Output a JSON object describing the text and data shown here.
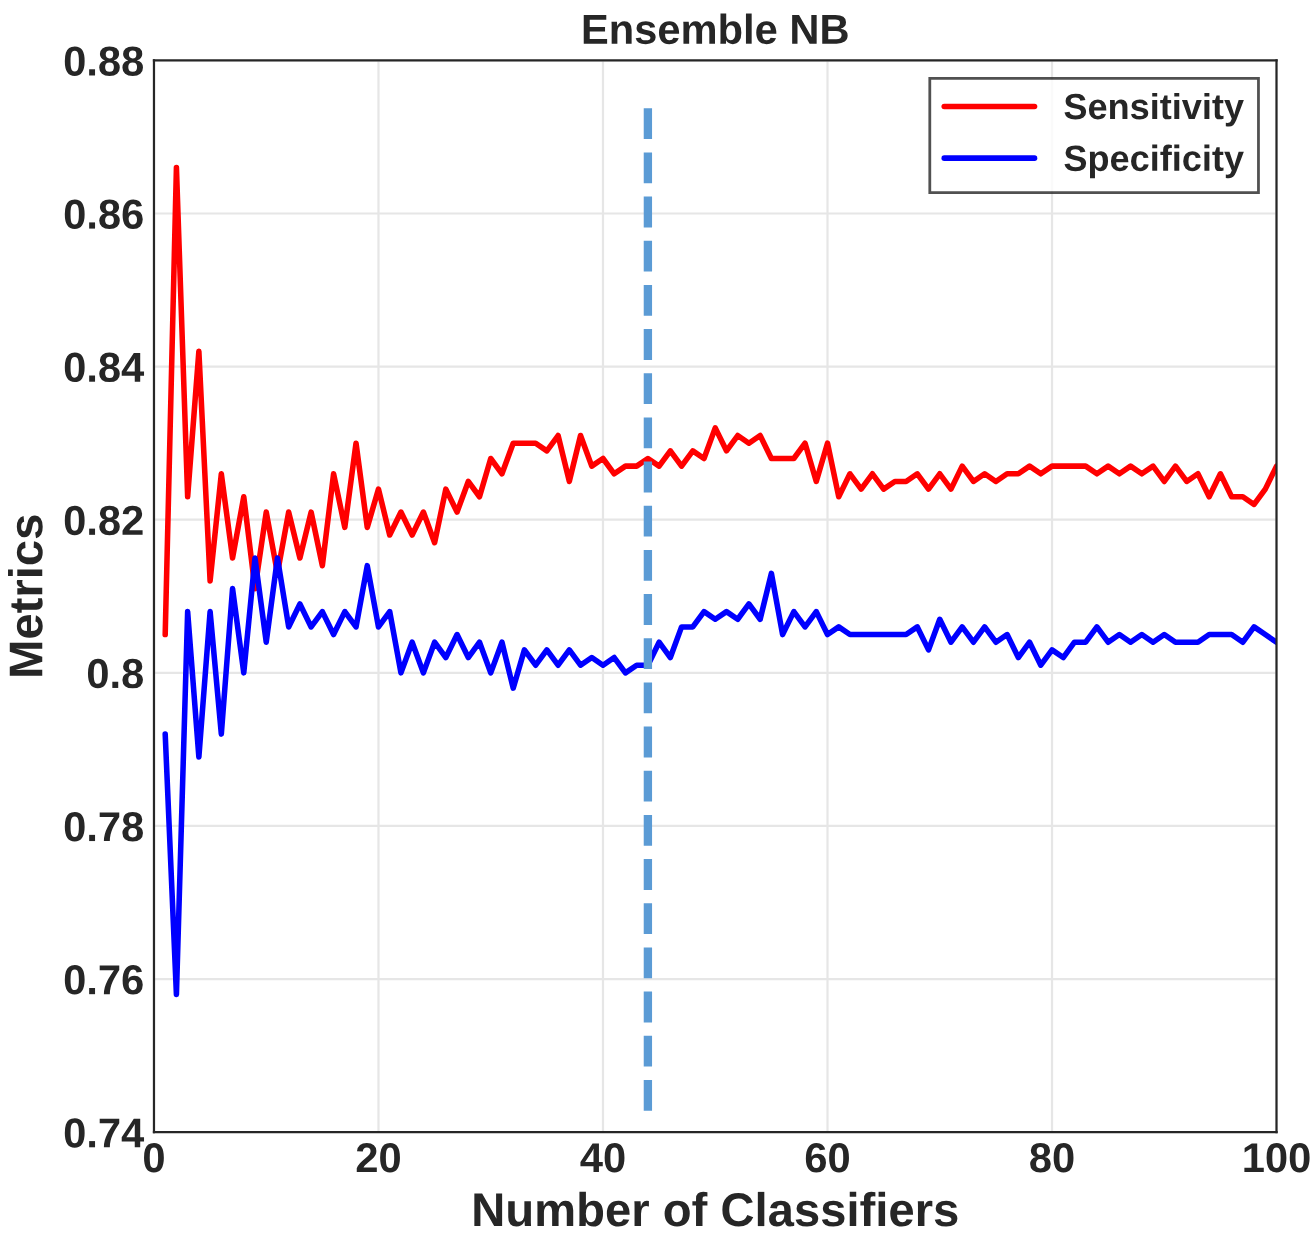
{
  "chart_data": {
    "type": "line",
    "title": "Ensemble NB",
    "xlabel": "Number of Classifiers",
    "ylabel": "Metrics",
    "x": [
      1,
      2,
      3,
      4,
      5,
      6,
      7,
      8,
      9,
      10,
      11,
      12,
      13,
      14,
      15,
      16,
      17,
      18,
      19,
      20,
      21,
      22,
      23,
      24,
      25,
      26,
      27,
      28,
      29,
      30,
      31,
      32,
      33,
      34,
      35,
      36,
      37,
      38,
      39,
      40,
      41,
      42,
      43,
      44,
      45,
      46,
      47,
      48,
      49,
      50,
      51,
      52,
      53,
      54,
      55,
      56,
      57,
      58,
      59,
      60,
      61,
      62,
      63,
      64,
      65,
      66,
      67,
      68,
      69,
      70,
      71,
      72,
      73,
      74,
      75,
      76,
      77,
      78,
      79,
      80,
      81,
      82,
      83,
      84,
      85,
      86,
      87,
      88,
      89,
      90,
      91,
      92,
      93,
      94,
      95,
      96,
      97,
      98,
      99,
      100
    ],
    "series": [
      {
        "name": "Sensitivity",
        "color": "#ff0000",
        "values": [
          0.805,
          0.866,
          0.823,
          0.842,
          0.812,
          0.826,
          0.815,
          0.823,
          0.811,
          0.821,
          0.813,
          0.821,
          0.815,
          0.821,
          0.814,
          0.826,
          0.819,
          0.83,
          0.819,
          0.824,
          0.818,
          0.821,
          0.818,
          0.821,
          0.817,
          0.824,
          0.821,
          0.825,
          0.823,
          0.828,
          0.826,
          0.83,
          0.83,
          0.83,
          0.829,
          0.831,
          0.825,
          0.831,
          0.827,
          0.828,
          0.826,
          0.827,
          0.827,
          0.828,
          0.827,
          0.829,
          0.827,
          0.829,
          0.828,
          0.832,
          0.829,
          0.831,
          0.83,
          0.831,
          0.828,
          0.828,
          0.828,
          0.83,
          0.825,
          0.83,
          0.823,
          0.826,
          0.824,
          0.826,
          0.824,
          0.825,
          0.825,
          0.826,
          0.824,
          0.826,
          0.824,
          0.827,
          0.825,
          0.826,
          0.825,
          0.826,
          0.826,
          0.827,
          0.826,
          0.827,
          0.827,
          0.827,
          0.827,
          0.826,
          0.827,
          0.826,
          0.827,
          0.826,
          0.827,
          0.825,
          0.827,
          0.825,
          0.826,
          0.823,
          0.826,
          0.823,
          0.823,
          0.822,
          0.824,
          0.827
        ]
      },
      {
        "name": "Specificity",
        "color": "#0000ff",
        "values": [
          0.792,
          0.758,
          0.808,
          0.789,
          0.808,
          0.792,
          0.811,
          0.8,
          0.815,
          0.804,
          0.815,
          0.806,
          0.809,
          0.806,
          0.808,
          0.805,
          0.808,
          0.806,
          0.814,
          0.806,
          0.808,
          0.8,
          0.804,
          0.8,
          0.804,
          0.802,
          0.805,
          0.802,
          0.804,
          0.8,
          0.804,
          0.798,
          0.803,
          0.801,
          0.803,
          0.801,
          0.803,
          0.801,
          0.802,
          0.801,
          0.802,
          0.8,
          0.801,
          0.801,
          0.804,
          0.802,
          0.806,
          0.806,
          0.808,
          0.807,
          0.808,
          0.807,
          0.809,
          0.807,
          0.813,
          0.805,
          0.808,
          0.806,
          0.808,
          0.805,
          0.806,
          0.805,
          0.805,
          0.805,
          0.805,
          0.805,
          0.805,
          0.806,
          0.803,
          0.807,
          0.804,
          0.806,
          0.804,
          0.806,
          0.804,
          0.805,
          0.802,
          0.804,
          0.801,
          0.803,
          0.802,
          0.804,
          0.804,
          0.806,
          0.804,
          0.805,
          0.804,
          0.805,
          0.804,
          0.805,
          0.804,
          0.804,
          0.804,
          0.805,
          0.805,
          0.805,
          0.804,
          0.806,
          0.805,
          0.804
        ]
      }
    ],
    "ref_lines": [
      {
        "axis": "x",
        "value": 44,
        "color": "#5b9bd5",
        "line_style": "dashed"
      }
    ],
    "xlim": [
      0,
      100
    ],
    "xticks": [
      0,
      20,
      40,
      60,
      80,
      100
    ],
    "ylim": [
      0.74,
      0.88
    ],
    "yticks": [
      0.74,
      0.76,
      0.78,
      0.8,
      0.82,
      0.84,
      0.86,
      0.88
    ],
    "grid": true,
    "legend": "top right",
    "line_style": "solid",
    "marker": "none"
  }
}
